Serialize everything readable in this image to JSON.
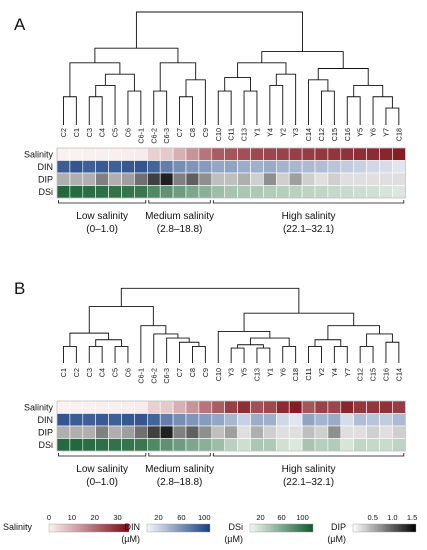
{
  "panels": [
    {
      "label": "A",
      "samples": [
        "C2",
        "C1",
        "C3",
        "C4",
        "C5",
        "C6",
        "C6-1",
        "C6-2",
        "C6-3",
        "C7",
        "C8",
        "C9",
        "C10",
        "C11",
        "C13",
        "Y1",
        "Y4",
        "Y2",
        "Y3",
        "C14",
        "C12",
        "C15",
        "C16",
        "Y5",
        "Y6",
        "Y7",
        "C18"
      ],
      "salinity": [
        0.2,
        0.1,
        0.3,
        0.4,
        0.5,
        0.6,
        1.0,
        5.0,
        6.0,
        10.0,
        14.0,
        18.8,
        22.5,
        23.5,
        24.5,
        25.5,
        26.0,
        26.5,
        27.0,
        27.5,
        28.0,
        28.5,
        29.0,
        29.5,
        30.0,
        31.0,
        32.1
      ],
      "din": [
        92,
        96,
        90,
        93,
        90,
        95,
        96,
        88,
        72,
        62,
        58,
        55,
        48,
        50,
        44,
        42,
        45,
        40,
        38,
        36,
        34,
        30,
        25,
        22,
        18,
        15,
        10
      ],
      "dip": [
        0.5,
        0.5,
        0.5,
        0.8,
        0.5,
        0.6,
        0.9,
        1.2,
        1.4,
        0.8,
        1.0,
        0.7,
        0.4,
        0.4,
        0.5,
        0.3,
        0.7,
        0.3,
        0.6,
        0.3,
        0.2,
        0.3,
        0.2,
        0.2,
        0.2,
        0.2,
        0.2
      ],
      "dsi": [
        110,
        108,
        106,
        104,
        102,
        100,
        98,
        85,
        78,
        70,
        62,
        55,
        45,
        40,
        38,
        36,
        34,
        32,
        30,
        28,
        26,
        24,
        22,
        20,
        18,
        15,
        12
      ],
      "groups": [
        {
          "label": "Low salinity",
          "range": "(0–1.0)"
        },
        {
          "label": "Medium salinity",
          "range": "(2.8–18.8)"
        },
        {
          "label": "High salinity",
          "range": "(22.1–32.1)"
        }
      ]
    },
    {
      "label": "B",
      "samples": [
        "C1",
        "C2",
        "C3",
        "C4",
        "C5",
        "C6",
        "C6-1",
        "C6-2",
        "C6-3",
        "C7",
        "C8",
        "C9",
        "C10",
        "Y3",
        "Y5",
        "C13",
        "Y1",
        "Y6",
        "C18",
        "C11",
        "Y2",
        "Y4",
        "Y7",
        "C12",
        "C15",
        "C16",
        "C14"
      ],
      "salinity": [
        0.1,
        0.2,
        0.3,
        0.4,
        0.5,
        0.6,
        1.0,
        5.0,
        6.0,
        10.0,
        14.0,
        18.8,
        22.5,
        27.0,
        29.5,
        24.5,
        25.5,
        30.0,
        32.1,
        23.5,
        26.5,
        26.0,
        31.0,
        28.0,
        28.5,
        29.0,
        27.5
      ],
      "din": [
        96,
        92,
        90,
        93,
        90,
        95,
        96,
        88,
        72,
        62,
        58,
        55,
        48,
        38,
        22,
        44,
        42,
        18,
        10,
        50,
        40,
        45,
        15,
        34,
        30,
        25,
        36
      ],
      "dip": [
        0.5,
        0.5,
        0.5,
        0.8,
        0.5,
        0.6,
        0.9,
        1.2,
        1.4,
        0.8,
        1.0,
        0.7,
        0.4,
        0.6,
        0.2,
        0.5,
        0.3,
        0.2,
        0.2,
        0.4,
        0.3,
        0.7,
        0.2,
        0.2,
        0.3,
        0.2,
        0.3
      ],
      "dsi": [
        108,
        110,
        106,
        104,
        102,
        100,
        98,
        85,
        78,
        70,
        62,
        55,
        45,
        30,
        20,
        38,
        36,
        18,
        12,
        40,
        32,
        34,
        15,
        26,
        24,
        22,
        28
      ],
      "groups": [
        {
          "label": "Low salinity",
          "range": "(0–1.0)"
        },
        {
          "label": "Medium salinity",
          "range": "(2.8–18.8)"
        },
        {
          "label": "High salinity",
          "range": "(22.1–32.1)"
        }
      ]
    }
  ],
  "row_labels": [
    "Salinity",
    "DIN",
    "DIP",
    "DSi"
  ],
  "legends": [
    {
      "name": "Salinity",
      "unit": "",
      "min": 0,
      "max": 35,
      "ticks": [
        "0",
        "10",
        "20",
        "30"
      ],
      "tick_values": [
        0,
        10,
        20,
        30
      ],
      "colors": [
        "#fbf2f2",
        "#7a0a14"
      ]
    },
    {
      "name": "DIN",
      "unit": "(µM)",
      "min": 0,
      "max": 110,
      "ticks": [
        "20",
        "60",
        "100"
      ],
      "tick_values": [
        20,
        60,
        100
      ],
      "colors": [
        "#f4f6fa",
        "#173f80"
      ]
    },
    {
      "name": "DSi",
      "unit": "(µM)",
      "min": 0,
      "max": 120,
      "ticks": [
        "20",
        "60",
        "100"
      ],
      "tick_values": [
        20,
        60,
        100
      ],
      "colors": [
        "#f3f8f3",
        "#0f5a2c"
      ]
    },
    {
      "name": "DIP",
      "unit": "(µM)",
      "min": 0,
      "max": 1.6,
      "ticks": [
        "0.5",
        "1.0",
        "1.5"
      ],
      "tick_values": [
        0.5,
        1.0,
        1.5
      ],
      "colors": [
        "#ffffff",
        "#000000"
      ]
    }
  ]
}
